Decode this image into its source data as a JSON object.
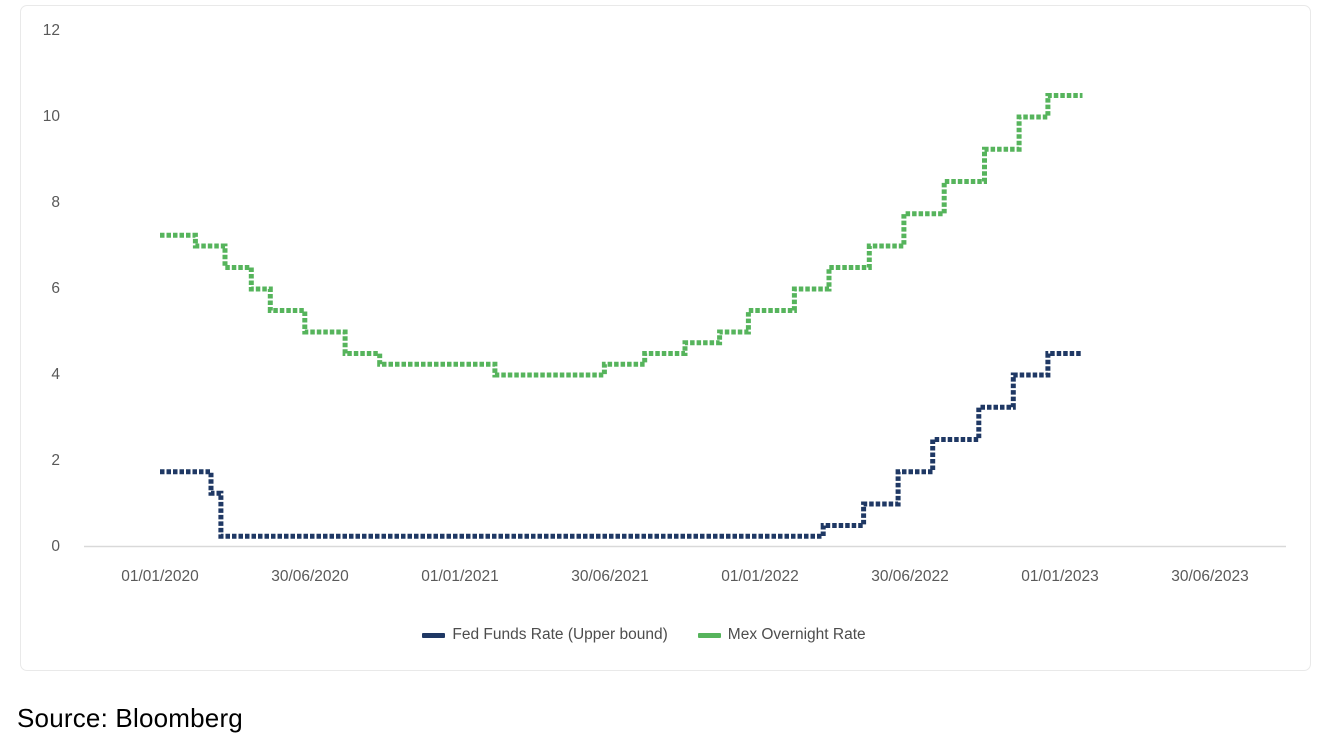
{
  "chart_data": {
    "type": "line",
    "subtype": "step-after-dashed",
    "title": "",
    "grid": "off",
    "legend_position": "bottom",
    "x_axis": {
      "tick_labels": [
        "01/01/2020",
        "30/06/2020",
        "01/01/2021",
        "30/06/2021",
        "01/01/2022",
        "30/06/2022",
        "01/01/2023",
        "30/06/2023"
      ],
      "domain": [
        "2020-01-01",
        "2023-06-30"
      ]
    },
    "y_axis": {
      "ticks": [
        12,
        10,
        8,
        6,
        4,
        2,
        0
      ],
      "range": [
        0,
        12
      ]
    },
    "axis_line_color": "#d9d9d9",
    "tick_label_color": "#595959",
    "series": [
      {
        "name": "Fed Funds Rate (Upper bound)",
        "color": "#1f3864",
        "end_date": "2023-01-26",
        "points": [
          {
            "date": "2020-01-01",
            "value": 1.75
          },
          {
            "date": "2020-03-03",
            "value": 1.25
          },
          {
            "date": "2020-03-15",
            "value": 0.25
          },
          {
            "date": "2022-03-17",
            "value": 0.5
          },
          {
            "date": "2022-05-05",
            "value": 1.0
          },
          {
            "date": "2022-06-16",
            "value": 1.75
          },
          {
            "date": "2022-07-28",
            "value": 2.5
          },
          {
            "date": "2022-09-22",
            "value": 3.25
          },
          {
            "date": "2022-11-03",
            "value": 4.0
          },
          {
            "date": "2022-12-15",
            "value": 4.5
          }
        ]
      },
      {
        "name": "Mex Overnight Rate",
        "color": "#56b45c",
        "end_date": "2023-01-26",
        "points": [
          {
            "date": "2020-01-01",
            "value": 7.25
          },
          {
            "date": "2020-02-13",
            "value": 7.0
          },
          {
            "date": "2020-03-20",
            "value": 6.5
          },
          {
            "date": "2020-04-21",
            "value": 6.0
          },
          {
            "date": "2020-05-14",
            "value": 5.5
          },
          {
            "date": "2020-06-25",
            "value": 5.0
          },
          {
            "date": "2020-08-13",
            "value": 4.5
          },
          {
            "date": "2020-09-24",
            "value": 4.25
          },
          {
            "date": "2021-02-11",
            "value": 4.0
          },
          {
            "date": "2021-06-24",
            "value": 4.25
          },
          {
            "date": "2021-08-12",
            "value": 4.5
          },
          {
            "date": "2021-09-30",
            "value": 4.75
          },
          {
            "date": "2021-11-11",
            "value": 5.0
          },
          {
            "date": "2021-12-16",
            "value": 5.5
          },
          {
            "date": "2022-02-10",
            "value": 6.0
          },
          {
            "date": "2022-03-24",
            "value": 6.5
          },
          {
            "date": "2022-05-12",
            "value": 7.0
          },
          {
            "date": "2022-06-23",
            "value": 7.75
          },
          {
            "date": "2022-08-11",
            "value": 8.5
          },
          {
            "date": "2022-09-29",
            "value": 9.25
          },
          {
            "date": "2022-11-10",
            "value": 10.0
          },
          {
            "date": "2022-12-15",
            "value": 10.5
          }
        ]
      }
    ]
  },
  "source_note": "Source: Bloomberg"
}
